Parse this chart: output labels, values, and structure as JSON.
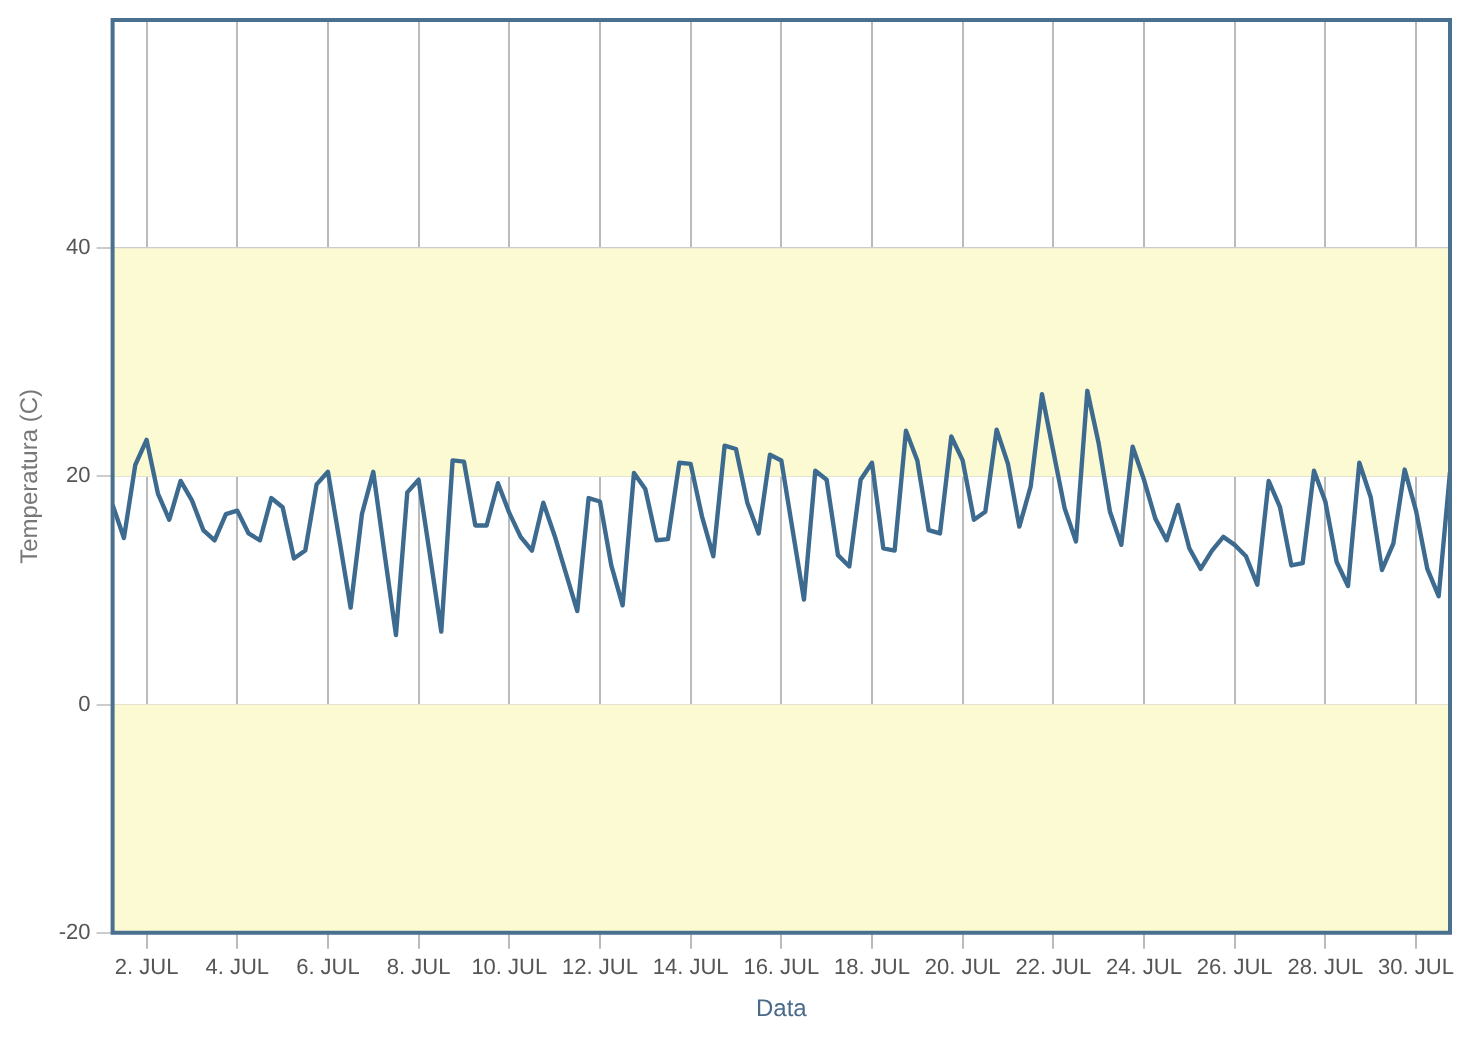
{
  "chart_data": {
    "type": "line",
    "xlabel": "Data",
    "ylabel": "Temperatura (C)",
    "categories": [
      null,
      null,
      null,
      "2. JUL",
      null,
      null,
      null,
      null,
      null,
      null,
      null,
      "4. JUL",
      null,
      null,
      null,
      null,
      null,
      null,
      null,
      "6. JUL",
      null,
      null,
      null,
      null,
      null,
      null,
      null,
      "8. JUL",
      null,
      null,
      null,
      null,
      null,
      null,
      null,
      "10. JUL",
      null,
      null,
      null,
      null,
      null,
      null,
      null,
      "12. JUL",
      null,
      null,
      null,
      null,
      null,
      null,
      null,
      "14. JUL",
      null,
      null,
      null,
      null,
      null,
      null,
      null,
      "16. JUL",
      null,
      null,
      null,
      null,
      null,
      null,
      null,
      "18. JUL",
      null,
      null,
      null,
      null,
      null,
      null,
      null,
      "20. JUL",
      null,
      null,
      null,
      null,
      null,
      null,
      null,
      "22. JUL",
      null,
      null,
      null,
      null,
      null,
      null,
      null,
      "24. JUL",
      null,
      null,
      null,
      null,
      null,
      null,
      null,
      "26. JUL",
      null,
      null,
      null,
      null,
      null,
      null,
      null,
      "28. JUL",
      null,
      null,
      null,
      null,
      null,
      null,
      null,
      "30. JUL",
      null,
      null,
      null
    ],
    "ylim": [
      -20,
      60
    ],
    "yticks": [
      -20,
      0,
      20,
      40
    ],
    "grid": true,
    "marker": "none",
    "line_style": "solid",
    "bands": [
      {
        "axis": "y",
        "from": -20,
        "to": 0,
        "color": "#fcfad2"
      },
      {
        "axis": "y",
        "from": 20,
        "to": 40,
        "color": "#fcfad2"
      }
    ],
    "series": [
      {
        "color": "#3d6a8f",
        "values": [
          17.5,
          14.6,
          21,
          23.2,
          18.5,
          16.2,
          19.6,
          17.9,
          15.3,
          14.4,
          16.7,
          17.0,
          15.0,
          14.4,
          18.1,
          17.3,
          12.8,
          13.5,
          19.3,
          20.4,
          14.5,
          8.5,
          16.7,
          20.4,
          13.2,
          6.1,
          18.6,
          19.7,
          13.1,
          6.4,
          21.4,
          21.3,
          15.7,
          15.7,
          19.4,
          16.8,
          14.7,
          13.5,
          17.7,
          14.8,
          11.5,
          8.2,
          18.1,
          17.8,
          12.2,
          8.7,
          20.3,
          18.9,
          14.4,
          14.5,
          21.2,
          21.1,
          16.5,
          13.0,
          22.7,
          22.4,
          17.7,
          15.0,
          21.9,
          21.4,
          15.3,
          9.2,
          20.5,
          19.7,
          13.1,
          12.1,
          19.7,
          21.2,
          13.7,
          13.5,
          24.0,
          21.4,
          15.3,
          15.0,
          23.5,
          21.4,
          16.2,
          16.9,
          24.1,
          21.1,
          15.6,
          19.1,
          27.2,
          22.2,
          17.2,
          14.3,
          27.5,
          22.9,
          16.9,
          14.0,
          22.6,
          19.7,
          16.3,
          14.4,
          17.5,
          13.7,
          11.9,
          13.5,
          14.7,
          14.0,
          13.0,
          10.5,
          19.6,
          17.3,
          12.2,
          12.4,
          20.5,
          17.8,
          12.5,
          10.4,
          21.2,
          18.2,
          11.8,
          14.1,
          20.6,
          17.0,
          11.9,
          9.5,
          20.4
        ]
      }
    ]
  }
}
